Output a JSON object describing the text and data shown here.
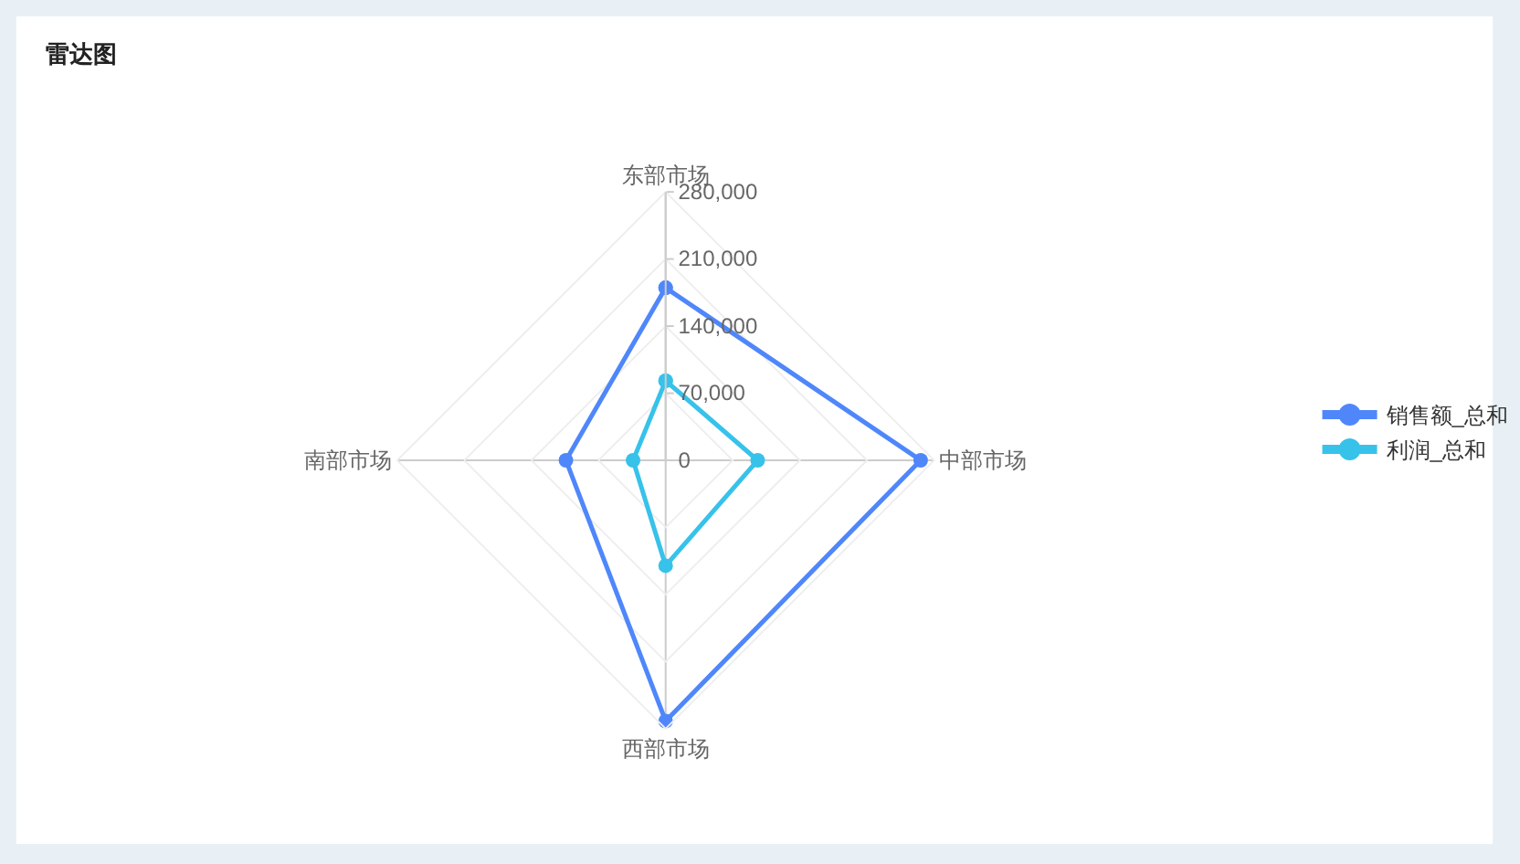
{
  "chart_data": {
    "type": "radar",
    "title": "雷达图",
    "categories": [
      "东部市场",
      "中部市场",
      "西部市场",
      "南部市场"
    ],
    "series": [
      {
        "name": "销售额_总和",
        "color": "#4f87fb",
        "values": [
          180000,
          266000,
          272000,
          104000
        ]
      },
      {
        "name": "利润_总和",
        "color": "#37c2ea",
        "values": [
          83000,
          96000,
          110000,
          34000
        ]
      }
    ],
    "ylim": [
      0,
      280000
    ],
    "yticks": [
      0,
      {
        "value": 70000,
        "label": "70,000"
      },
      {
        "value": 140000,
        "label": "140,000"
      },
      {
        "value": 210000,
        "label": "210,000"
      },
      {
        "value": 280000,
        "label": "280,000"
      }
    ],
    "grid": true,
    "legend": "right",
    "marker": "circle",
    "line_style": "solid"
  }
}
